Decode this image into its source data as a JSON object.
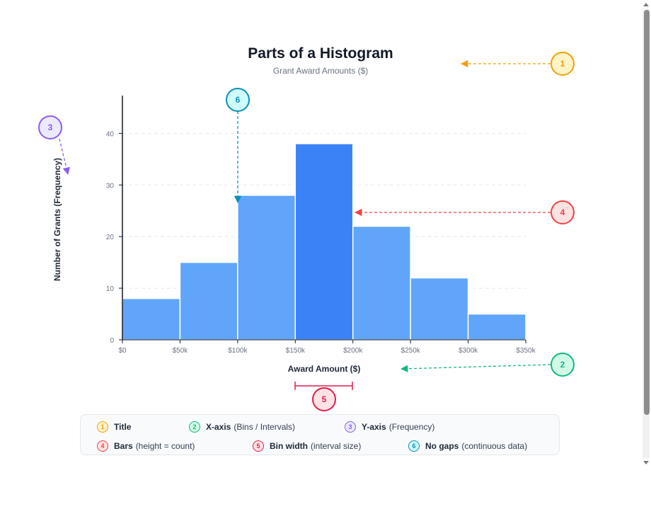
{
  "chart_data": {
    "type": "bar",
    "title": "Parts of a Histogram",
    "subtitle": "Grant Award Amounts ($)",
    "xlabel": "Award Amount ($)",
    "ylabel": "Number of Grants (Frequency)",
    "bin_edges": [
      0,
      50000,
      100000,
      150000,
      200000,
      250000,
      300000,
      350000
    ],
    "x_tick_labels": [
      "$0",
      "$50k",
      "$100k",
      "$150k",
      "$200k",
      "$250k",
      "$300k",
      "$350k"
    ],
    "values": [
      8,
      15,
      28,
      38,
      22,
      12,
      5
    ],
    "highlighted_bin": 3,
    "ylim": [
      0,
      48
    ],
    "y_ticks": [
      0,
      10,
      20,
      30,
      40
    ],
    "grid": true,
    "bar_color": "#60a5fa",
    "highlight_color": "#3b82f6"
  },
  "callouts": [
    {
      "num": "1",
      "color": "#f59e0b",
      "fill": "#fef3c7"
    },
    {
      "num": "2",
      "color": "#10b981",
      "fill": "#d1fae5"
    },
    {
      "num": "3",
      "color": "#8b5cf6",
      "fill": "#ede9fe"
    },
    {
      "num": "4",
      "color": "#ef4444",
      "fill": "#fee2e2"
    },
    {
      "num": "5",
      "color": "#e11d48",
      "fill": "#ffe4e6"
    },
    {
      "num": "6",
      "color": "#0891b2",
      "fill": "#cffafe"
    }
  ],
  "legend": [
    {
      "num": "1",
      "term": "Title",
      "desc": "",
      "color": "#f59e0b",
      "fill": "#fef3c7"
    },
    {
      "num": "2",
      "term": "X-axis",
      "desc": "(Bins / Intervals)",
      "color": "#10b981",
      "fill": "#d1fae5"
    },
    {
      "num": "3",
      "term": "Y-axis",
      "desc": "(Frequency)",
      "color": "#8b5cf6",
      "fill": "#ede9fe"
    },
    {
      "num": "4",
      "term": "Bars",
      "desc": "(height = count)",
      "color": "#ef4444",
      "fill": "#fee2e2"
    },
    {
      "num": "5",
      "term": "Bin width",
      "desc": "(interval size)",
      "color": "#e11d48",
      "fill": "#ffe4e6"
    },
    {
      "num": "6",
      "term": "No gaps",
      "desc": "(continuous data)",
      "color": "#0891b2",
      "fill": "#cffafe"
    }
  ]
}
